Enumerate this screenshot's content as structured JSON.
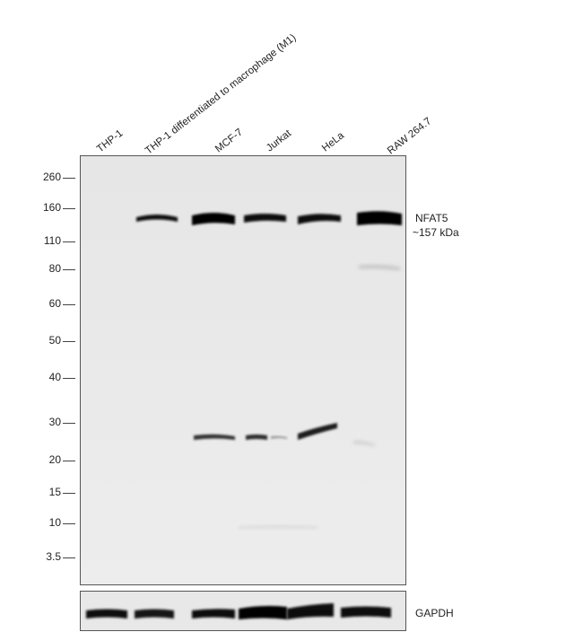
{
  "lanes": [
    "THP-1",
    "THP-1 differentiated to macrophage (M1)",
    "MCF-7",
    "Jurkat",
    "HeLa",
    "RAW 264.7"
  ],
  "mw_markers": [
    "260",
    "160",
    "110",
    "80",
    "60",
    "50",
    "40",
    "30",
    "20",
    "15",
    "10",
    "3.5"
  ],
  "target": {
    "name": "NFAT5",
    "size": "~157 kDa"
  },
  "loading_control": "GAPDH"
}
